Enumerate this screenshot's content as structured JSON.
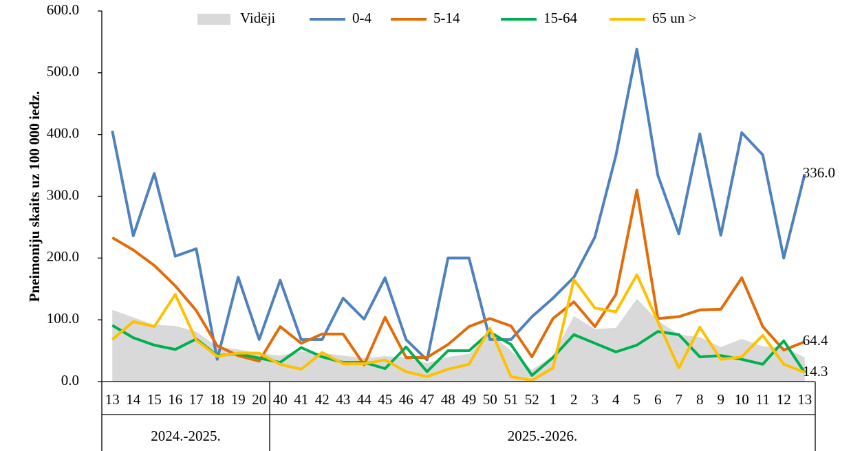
{
  "chart_data": {
    "type": "line",
    "y_label": "Pneimoniju skaits uz 100 000 iedz.",
    "category_groups": [
      {
        "label": "2024.-2025.",
        "categories": [
          "13",
          "14",
          "15",
          "16",
          "17",
          "18",
          "19",
          "20"
        ]
      },
      {
        "label": "2025.-2026.",
        "categories": [
          "40",
          "41",
          "42",
          "43",
          "44",
          "45",
          "46",
          "47",
          "48",
          "49",
          "50",
          "51",
          "52",
          "1",
          "2",
          "3",
          "4",
          "5",
          "6",
          "7",
          "8",
          "9",
          "10",
          "11",
          "12",
          "13"
        ]
      }
    ],
    "ylim": [
      0,
      600
    ],
    "yticks": [
      {
        "value": 0,
        "label": "0.0"
      },
      {
        "value": 100,
        "label": "100.0"
      },
      {
        "value": 200,
        "label": "200.0"
      },
      {
        "value": 300,
        "label": "300.0"
      },
      {
        "value": 400,
        "label": "400.0"
      },
      {
        "value": 500,
        "label": "500.0"
      },
      {
        "value": 600,
        "label": "600.0"
      }
    ],
    "series": [
      {
        "name": "Vidēji",
        "type": "area",
        "color": "#d9d9d9",
        "values": [
          116,
          104,
          92,
          90,
          81,
          56,
          52,
          46,
          42,
          49,
          46,
          42,
          38,
          41,
          39,
          30,
          40,
          45,
          78,
          50,
          19,
          42,
          106,
          85,
          87,
          134,
          99,
          76,
          72,
          56,
          69,
          57,
          56,
          39
        ]
      },
      {
        "name": "0-4",
        "type": "line",
        "color": "#4f81bd",
        "values": [
          406,
          236,
          337,
          203,
          215,
          36,
          169,
          68,
          164,
          68,
          68,
          135,
          101,
          168,
          68,
          35,
          200,
          200,
          68,
          68,
          105,
          135,
          169,
          234,
          366,
          538,
          334,
          239,
          401,
          237,
          403,
          367,
          200,
          336
        ],
        "value_labels": [
          null,
          null,
          null,
          null,
          null,
          null,
          null,
          null,
          null,
          null,
          null,
          null,
          null,
          null,
          null,
          null,
          null,
          null,
          null,
          null,
          null,
          null,
          null,
          null,
          null,
          null,
          null,
          null,
          null,
          null,
          null,
          null,
          null,
          "336.0"
        ]
      },
      {
        "name": "5-14",
        "type": "line",
        "color": "#e36c0a",
        "values": [
          233,
          213,
          188,
          155,
          115,
          58,
          42,
          33,
          89,
          62,
          77,
          77,
          27,
          104,
          39,
          39,
          60,
          89,
          102,
          90,
          40,
          102,
          129,
          89,
          141,
          310,
          102,
          105,
          116,
          117,
          168,
          89,
          51,
          64.4
        ],
        "value_labels": [
          null,
          null,
          null,
          null,
          null,
          null,
          null,
          null,
          null,
          null,
          null,
          null,
          null,
          null,
          null,
          null,
          null,
          null,
          null,
          null,
          null,
          null,
          null,
          null,
          null,
          null,
          null,
          null,
          null,
          null,
          null,
          null,
          null,
          "64.4"
        ]
      },
      {
        "name": "15-64",
        "type": "line",
        "color": "#00b050",
        "values": [
          91,
          71,
          59,
          52,
          69,
          42,
          45,
          38,
          31,
          55,
          40,
          31,
          31,
          21,
          56,
          16,
          50,
          50,
          80,
          60,
          10,
          39,
          76,
          62,
          48,
          59,
          81,
          76,
          40,
          42,
          36,
          28,
          66,
          14.3
        ],
        "value_labels": [
          null,
          null,
          null,
          null,
          null,
          null,
          null,
          null,
          null,
          null,
          null,
          null,
          null,
          null,
          null,
          null,
          null,
          null,
          null,
          null,
          null,
          null,
          null,
          null,
          null,
          null,
          null,
          null,
          null,
          null,
          null,
          null,
          null,
          "14.3"
        ]
      },
      {
        "name": "65 un >",
        "type": "line",
        "color": "#ffc000",
        "values": [
          68,
          97,
          89,
          141,
          67,
          41,
          46,
          46,
          28,
          20,
          47,
          29,
          29,
          35,
          16,
          8,
          20,
          28,
          86,
          8,
          2,
          22,
          165,
          119,
          113,
          173,
          97,
          22,
          88,
          36,
          40,
          75,
          28,
          15
        ]
      }
    ]
  }
}
